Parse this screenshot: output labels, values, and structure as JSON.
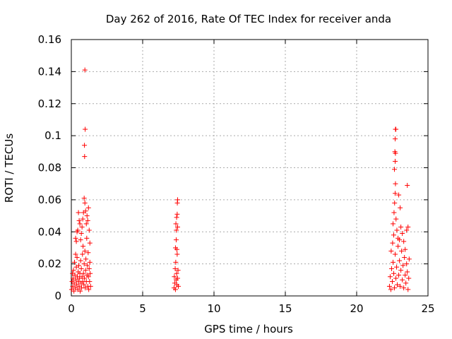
{
  "chart_data": {
    "type": "scatter",
    "title": "Day 262 of 2016, Rate Of TEC Index for receiver anda",
    "xlabel": "GPS time / hours",
    "ylabel": "ROTI / TECUs",
    "xlim": [
      0,
      25
    ],
    "ylim": [
      0,
      0.16
    ],
    "xticks": [
      0,
      5,
      10,
      15,
      20,
      25
    ],
    "xtick_labels": [
      "0",
      "5",
      "10",
      "15",
      "20",
      "25"
    ],
    "yticks": [
      0,
      0.02,
      0.04,
      0.06,
      0.08,
      0.1,
      0.12,
      0.14,
      0.16
    ],
    "ytick_labels": [
      "0",
      "0.02",
      "0.04",
      "0.06",
      "0.08",
      "0.1",
      "0.12",
      "0.14",
      "0.16"
    ],
    "grid": true,
    "marker": "+",
    "marker_color": "#ff0000",
    "series": [
      {
        "name": "ROTI",
        "points": [
          [
            0.02,
            0.004
          ],
          [
            0.05,
            0.009
          ],
          [
            0.08,
            0.014
          ],
          [
            0.1,
            0.006
          ],
          [
            0.12,
            0.011
          ],
          [
            0.15,
            0.016
          ],
          [
            0.18,
            0.003
          ],
          [
            0.2,
            0.008
          ],
          [
            0.22,
            0.021
          ],
          [
            0.25,
            0.013
          ],
          [
            0.28,
            0.005
          ],
          [
            0.3,
            0.026
          ],
          [
            0.32,
            0.01
          ],
          [
            0.35,
            0.018
          ],
          [
            0.38,
            0.007
          ],
          [
            0.4,
            0.024
          ],
          [
            0.42,
            0.012
          ],
          [
            0.45,
            0.004
          ],
          [
            0.48,
            0.015
          ],
          [
            0.5,
            0.009
          ],
          [
            0.52,
            0.019
          ],
          [
            0.55,
            0.006
          ],
          [
            0.58,
            0.011
          ],
          [
            0.6,
            0.014
          ],
          [
            0.62,
            0.003
          ],
          [
            0.65,
            0.022
          ],
          [
            0.68,
            0.008
          ],
          [
            0.7,
            0.017
          ],
          [
            0.72,
            0.005
          ],
          [
            0.75,
            0.012
          ],
          [
            0.78,
            0.026
          ],
          [
            0.8,
            0.009
          ],
          [
            0.82,
            0.031
          ],
          [
            0.85,
            0.014
          ],
          [
            0.88,
            0.007
          ],
          [
            0.9,
            0.02
          ],
          [
            0.92,
            0.011
          ],
          [
            0.95,
            0.028
          ],
          [
            0.98,
            0.005
          ],
          [
            1.0,
            0.016
          ],
          [
            1.02,
            0.023
          ],
          [
            1.05,
            0.009
          ],
          [
            1.08,
            0.036
          ],
          [
            1.1,
            0.013
          ],
          [
            1.12,
            0.019
          ],
          [
            1.15,
            0.006
          ],
          [
            1.18,
            0.027
          ],
          [
            1.2,
            0.012
          ],
          [
            1.22,
            0.004
          ],
          [
            1.25,
            0.017
          ],
          [
            1.28,
            0.009
          ],
          [
            1.3,
            0.021
          ],
          [
            1.32,
            0.014
          ],
          [
            1.35,
            0.006
          ],
          [
            0.3,
            0.036
          ],
          [
            0.35,
            0.034
          ],
          [
            0.4,
            0.04
          ],
          [
            0.45,
            0.041
          ],
          [
            0.5,
            0.052
          ],
          [
            0.55,
            0.047
          ],
          [
            0.6,
            0.045
          ],
          [
            0.65,
            0.035
          ],
          [
            0.7,
            0.039
          ],
          [
            0.75,
            0.043
          ],
          [
            0.8,
            0.048
          ],
          [
            0.85,
            0.052
          ],
          [
            0.9,
            0.061
          ],
          [
            0.95,
            0.058
          ],
          [
            1.0,
            0.053
          ],
          [
            1.05,
            0.045
          ],
          [
            1.1,
            0.05
          ],
          [
            1.15,
            0.047
          ],
          [
            1.2,
            0.055
          ],
          [
            1.25,
            0.041
          ],
          [
            1.3,
            0.033
          ],
          [
            0.95,
            0.141
          ],
          [
            0.97,
            0.104
          ],
          [
            0.92,
            0.094
          ],
          [
            0.93,
            0.087
          ],
          [
            7.2,
            0.005
          ],
          [
            7.22,
            0.012
          ],
          [
            7.25,
            0.008
          ],
          [
            7.28,
            0.017
          ],
          [
            7.3,
            0.004
          ],
          [
            7.32,
            0.021
          ],
          [
            7.35,
            0.01
          ],
          [
            7.38,
            0.014
          ],
          [
            7.4,
            0.007
          ],
          [
            7.42,
            0.026
          ],
          [
            7.45,
            0.011
          ],
          [
            7.48,
            0.016
          ],
          [
            7.5,
            0.006
          ],
          [
            7.3,
            0.03
          ],
          [
            7.35,
            0.035
          ],
          [
            7.4,
            0.029
          ],
          [
            7.33,
            0.045
          ],
          [
            7.38,
            0.049
          ],
          [
            7.42,
            0.051
          ],
          [
            7.36,
            0.041
          ],
          [
            7.45,
            0.043
          ],
          [
            7.45,
            0.06
          ],
          [
            7.43,
            0.058
          ],
          [
            22.3,
            0.006
          ],
          [
            22.35,
            0.012
          ],
          [
            22.4,
            0.004
          ],
          [
            22.45,
            0.017
          ],
          [
            22.5,
            0.009
          ],
          [
            22.55,
            0.021
          ],
          [
            22.6,
            0.014
          ],
          [
            22.65,
            0.005
          ],
          [
            22.7,
            0.026
          ],
          [
            22.75,
            0.011
          ],
          [
            22.8,
            0.018
          ],
          [
            22.85,
            0.007
          ],
          [
            22.9,
            0.031
          ],
          [
            22.95,
            0.013
          ],
          [
            23.0,
            0.022
          ],
          [
            23.05,
            0.006
          ],
          [
            23.1,
            0.016
          ],
          [
            23.15,
            0.028
          ],
          [
            23.2,
            0.01
          ],
          [
            23.25,
            0.019
          ],
          [
            23.3,
            0.005
          ],
          [
            23.35,
            0.024
          ],
          [
            23.4,
            0.013
          ],
          [
            23.45,
            0.008
          ],
          [
            23.5,
            0.02
          ],
          [
            23.55,
            0.015
          ],
          [
            23.6,
            0.004
          ],
          [
            23.65,
            0.011
          ],
          [
            23.68,
            0.023
          ],
          [
            22.42,
            0.028
          ],
          [
            22.52,
            0.033
          ],
          [
            22.6,
            0.038
          ],
          [
            22.55,
            0.045
          ],
          [
            22.62,
            0.052
          ],
          [
            22.66,
            0.058
          ],
          [
            22.7,
            0.064
          ],
          [
            22.72,
            0.07
          ],
          [
            22.76,
            0.048
          ],
          [
            22.82,
            0.041
          ],
          [
            22.9,
            0.036
          ],
          [
            23.0,
            0.035
          ],
          [
            23.1,
            0.043
          ],
          [
            23.2,
            0.039
          ],
          [
            23.3,
            0.034
          ],
          [
            23.4,
            0.029
          ],
          [
            23.5,
            0.041
          ],
          [
            23.6,
            0.043
          ],
          [
            22.65,
            0.079
          ],
          [
            22.7,
            0.084
          ],
          [
            22.68,
            0.09
          ],
          [
            22.72,
            0.089
          ],
          [
            22.7,
            0.098
          ],
          [
            22.72,
            0.104
          ],
          [
            22.75,
            0.104
          ],
          [
            23.55,
            0.069
          ],
          [
            22.95,
            0.063
          ],
          [
            23.05,
            0.055
          ]
        ]
      }
    ]
  }
}
